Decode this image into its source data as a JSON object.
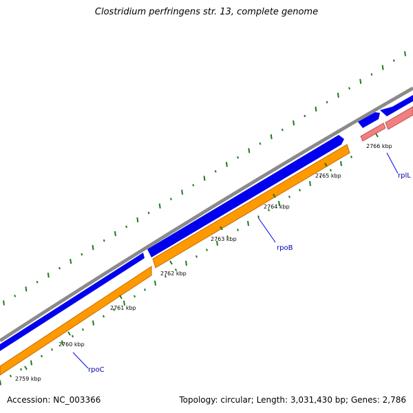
{
  "title": "Clostridium perfringens str. 13, complete genome",
  "footer": {
    "accession": "Accession: NC_003366",
    "summary": "Topology: circular; Length: 3,031,430 bp; Genes: 2,786"
  },
  "colors": {
    "backbone": "#8a8a8a",
    "forward_gene": "#0000ee",
    "reverse_gene": "#ff9900",
    "rna_gene": "#f08080",
    "gc_skew": "#1a7a1a",
    "label_line": "#0000ee"
  },
  "ticks": [
    {
      "label": "2759 kbp"
    },
    {
      "label": "2760 kbp"
    },
    {
      "label": "2761 kbp"
    },
    {
      "label": "2762 kbp"
    },
    {
      "label": "2763 kbp"
    },
    {
      "label": "2764 kbp"
    },
    {
      "label": "2765 kbp"
    },
    {
      "label": "2766 kbp"
    }
  ],
  "genes": [
    {
      "name": "rpoC"
    },
    {
      "name": "rpoB"
    },
    {
      "name": "rplL"
    }
  ]
}
